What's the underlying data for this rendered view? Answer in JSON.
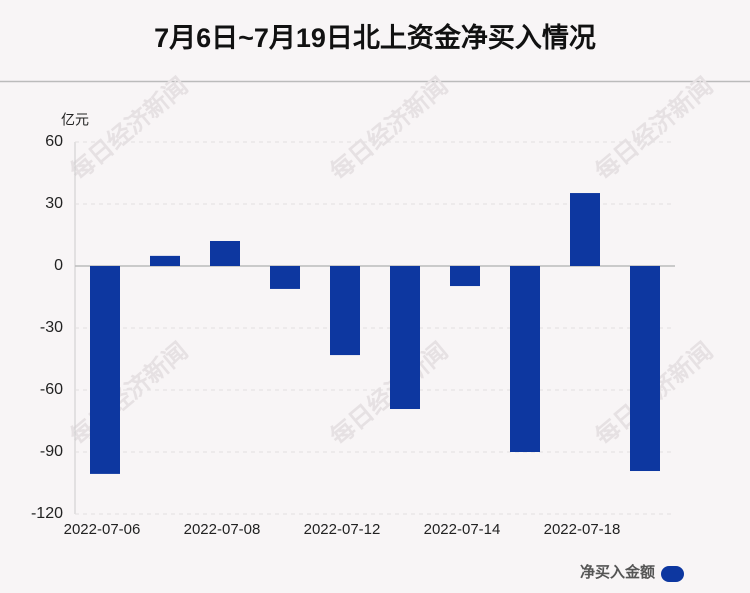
{
  "chart_data": {
    "type": "bar",
    "title": "7月6日~7月19日北上资金净买入情况",
    "y_unit": "亿元",
    "watermark": "每日经济新闻",
    "categories": [
      "2022-07-06",
      null,
      "2022-07-08",
      null,
      "2022-07-12",
      null,
      "2022-07-14",
      null,
      "2022-07-18",
      null
    ],
    "series": [
      {
        "name": "净买入金额",
        "color": "#0d37a0",
        "values": [
          -100.6,
          4.9,
          12.1,
          -11.1,
          -43.1,
          -69.2,
          -9.7,
          -90.0,
          35.3,
          -99.2
        ]
      }
    ],
    "ylim": [
      -120,
      60
    ],
    "yticks": [
      -120,
      -90,
      -60,
      -30,
      0,
      30,
      60
    ],
    "grid": true,
    "legend": "bottom-right"
  }
}
